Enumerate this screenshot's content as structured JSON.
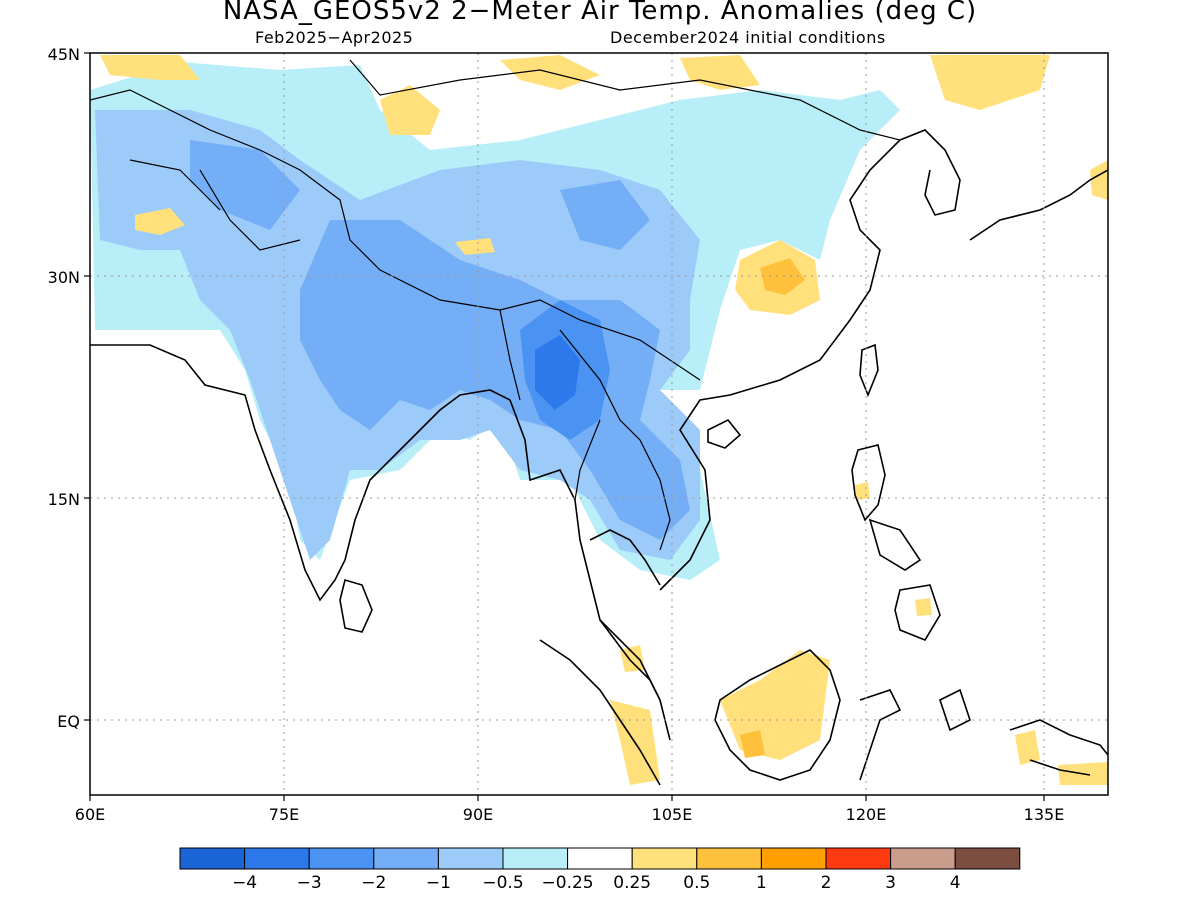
{
  "title": "NASA_GEOS5v2 2−Meter Air Temp. Anomalies (deg C)",
  "subtitle_left": "Feb2025−Apr2025",
  "subtitle_right": "December2024 initial conditions",
  "lat_labels": [
    "45N",
    "30N",
    "15N",
    "EQ"
  ],
  "lon_labels": [
    "60E",
    "75E",
    "90E",
    "105E",
    "120E",
    "135E"
  ],
  "colorbar": {
    "colors": [
      "#1a64d6",
      "#2d78eb",
      "#4a93f2",
      "#74aef6",
      "#9ccbf9",
      "#b8eef8",
      "#ffffff",
      "#ffe07a",
      "#ffc13c",
      "#ffa000",
      "#ff3a10",
      "#c99c8c",
      "#7b4e40"
    ],
    "labels": [
      "−4",
      "−3",
      "−2",
      "−1",
      "−0.5",
      "−0.25",
      "0.25",
      "0.5",
      "1",
      "2",
      "3",
      "4"
    ]
  },
  "palette": {
    "blue_deep": "#2d78eb",
    "blue_mid": "#74aef6",
    "blue_light": "#9ccbf9",
    "cyan_light": "#b8eef8",
    "yellow_light": "#ffe07a",
    "orange": "#ffc13c"
  }
}
